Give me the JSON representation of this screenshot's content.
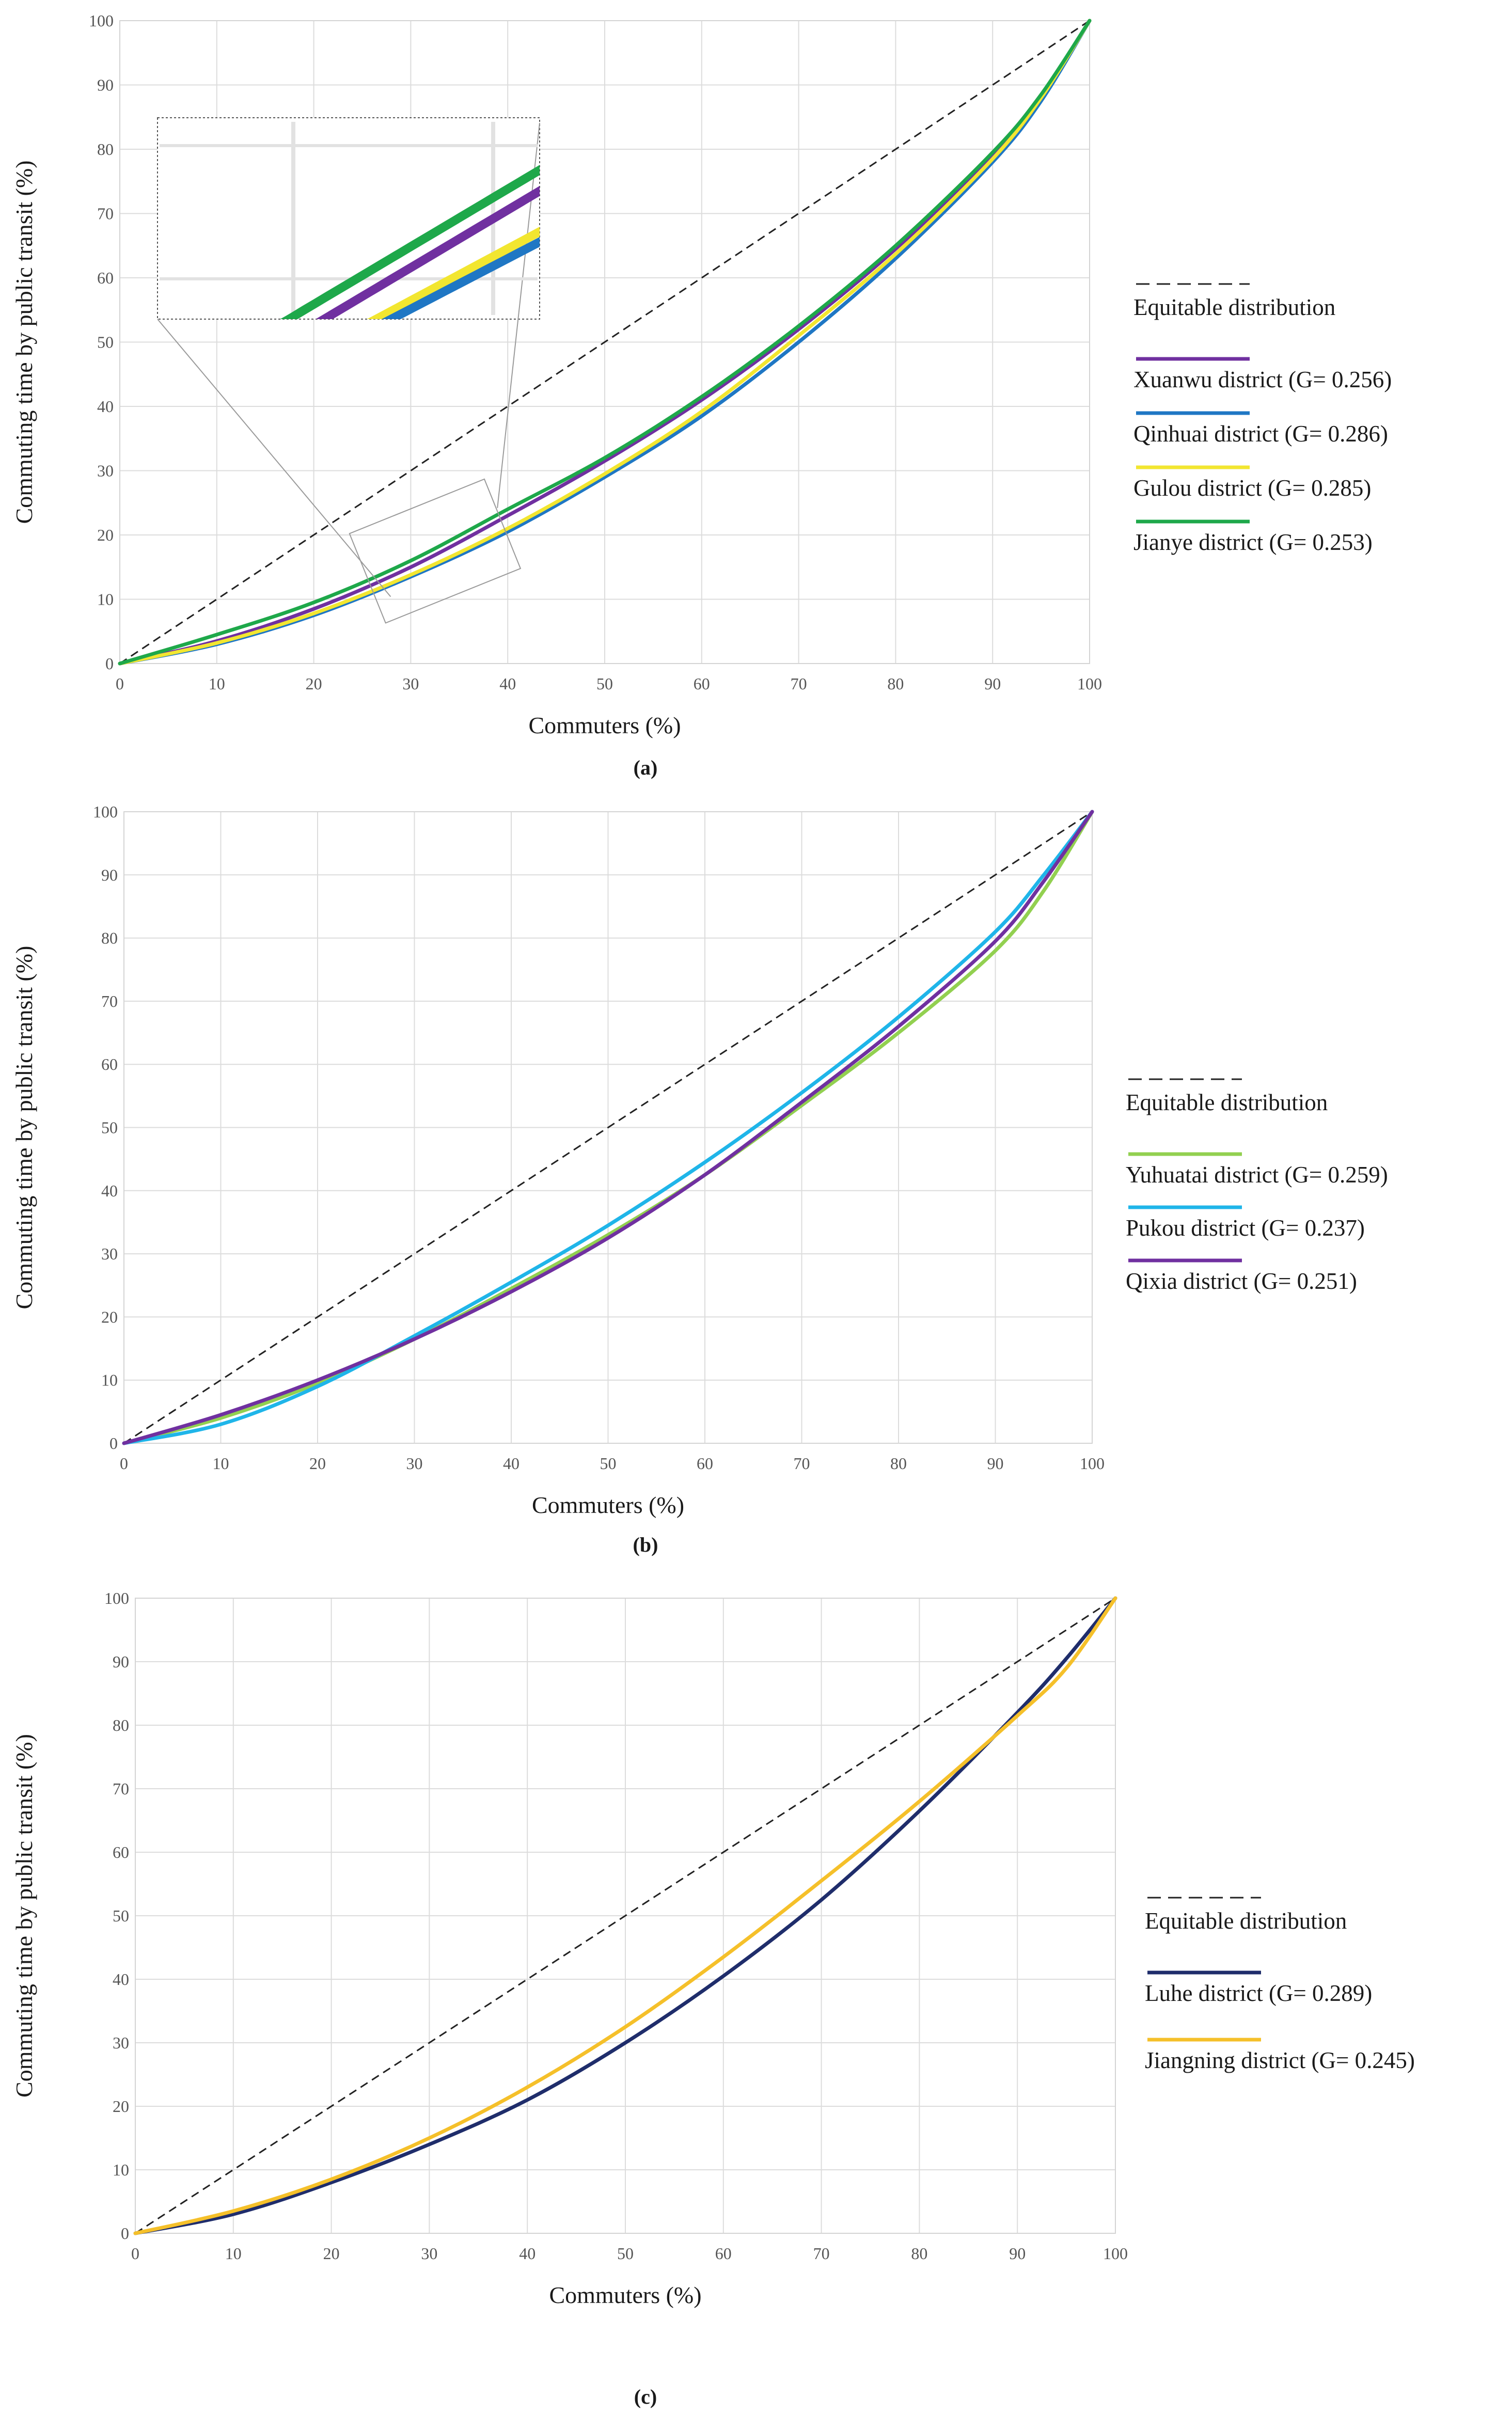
{
  "chart_data": [
    {
      "type": "line",
      "panel_label": "(a)",
      "xlabel": "Commuters (%)",
      "ylabel": "Commuting time by public transit (%)",
      "xlim": [
        0,
        100
      ],
      "ylim": [
        0,
        100
      ],
      "xticks": [
        0,
        10,
        20,
        30,
        40,
        50,
        60,
        70,
        80,
        90,
        100
      ],
      "yticks": [
        0,
        10,
        20,
        30,
        40,
        50,
        60,
        70,
        80,
        90,
        100
      ],
      "grid": true,
      "legend_position": "right",
      "inset_zoom": {
        "x_range": [
          25,
          40
        ],
        "y_range": [
          10,
          25
        ]
      },
      "reference": {
        "name": "Equitable distribution",
        "style": "dashed",
        "x": [
          0,
          100
        ],
        "y": [
          0,
          100
        ]
      },
      "series": [
        {
          "name": "Xuanwu district (G= 0.256)",
          "color": "#7030a0",
          "x": [
            0,
            10,
            20,
            30,
            40,
            50,
            60,
            70,
            80,
            90,
            95,
            100
          ],
          "y": [
            0,
            3.5,
            8.5,
            15,
            23,
            31.5,
            41,
            52,
            64.5,
            79,
            88,
            100
          ]
        },
        {
          "name": "Qinhuai district (G= 0.286)",
          "color": "#1f77c4",
          "x": [
            0,
            10,
            20,
            30,
            40,
            50,
            60,
            70,
            80,
            90,
            95,
            100
          ],
          "y": [
            0,
            3,
            7.5,
            13.5,
            20.5,
            29,
            38.5,
            50,
            63,
            78,
            87.5,
            100
          ]
        },
        {
          "name": "Gulou district (G= 0.285)",
          "color": "#f2e630",
          "x": [
            0,
            10,
            20,
            30,
            40,
            50,
            60,
            70,
            80,
            90,
            95,
            100
          ],
          "y": [
            0,
            3.2,
            7.8,
            13.8,
            21,
            29.5,
            39.2,
            51,
            63.7,
            78.5,
            88,
            100
          ]
        },
        {
          "name": "Jianye district (G= 0.253)",
          "color": "#1ea84a",
          "x": [
            0,
            10,
            20,
            30,
            40,
            50,
            60,
            70,
            80,
            90,
            95,
            100
          ],
          "y": [
            0,
            4.5,
            9.5,
            16,
            24,
            32,
            41.5,
            52.5,
            65,
            79.5,
            88.5,
            100
          ]
        }
      ]
    },
    {
      "type": "line",
      "panel_label": "(b)",
      "xlabel": "Commuters (%)",
      "ylabel": "Commuting time by public transit (%)",
      "xlim": [
        0,
        100
      ],
      "ylim": [
        0,
        100
      ],
      "xticks": [
        0,
        10,
        20,
        30,
        40,
        50,
        60,
        70,
        80,
        90,
        100
      ],
      "yticks": [
        0,
        10,
        20,
        30,
        40,
        50,
        60,
        70,
        80,
        90,
        100
      ],
      "grid": true,
      "legend_position": "right",
      "reference": {
        "name": "Equitable distribution",
        "style": "dashed",
        "x": [
          0,
          100
        ],
        "y": [
          0,
          100
        ]
      },
      "series": [
        {
          "name": "Yuhuatai district (G= 0.259)",
          "color": "#92d050",
          "x": [
            0,
            10,
            20,
            30,
            40,
            50,
            60,
            70,
            80,
            90,
            95,
            100
          ],
          "y": [
            0,
            4,
            9.5,
            16.5,
            24.5,
            33,
            42.5,
            53.5,
            65,
            78,
            87.5,
            100
          ]
        },
        {
          "name": "Pukou district (G= 0.237)",
          "color": "#1fb5e9",
          "x": [
            0,
            10,
            20,
            30,
            40,
            50,
            60,
            70,
            80,
            90,
            95,
            100
          ],
          "y": [
            0,
            3,
            9,
            17,
            25.5,
            34.5,
            44.5,
            55.5,
            67.5,
            81,
            90,
            100
          ]
        },
        {
          "name": "Qixia district (G= 0.251)",
          "color": "#7030a0",
          "x": [
            0,
            10,
            20,
            30,
            40,
            50,
            60,
            70,
            80,
            90,
            95,
            100
          ],
          "y": [
            0,
            4.5,
            10,
            16.5,
            24,
            32.5,
            42.5,
            54,
            66,
            79.5,
            89,
            100
          ]
        }
      ]
    },
    {
      "type": "line",
      "panel_label": "(c)",
      "xlabel": "Commuters (%)",
      "ylabel": "Commuting time by public transit (%)",
      "xlim": [
        0,
        100
      ],
      "ylim": [
        0,
        100
      ],
      "xticks": [
        0,
        10,
        20,
        30,
        40,
        50,
        60,
        70,
        80,
        90,
        100
      ],
      "yticks": [
        0,
        10,
        20,
        30,
        40,
        50,
        60,
        70,
        80,
        90,
        100
      ],
      "grid": true,
      "legend_position": "right",
      "reference": {
        "name": "Equitable distribution",
        "style": "dashed",
        "x": [
          0,
          100
        ],
        "y": [
          0,
          100
        ]
      },
      "series": [
        {
          "name": "Luhe district (G= 0.289)",
          "color": "#1f2d6b",
          "x": [
            0,
            10,
            20,
            30,
            40,
            50,
            60,
            70,
            80,
            90,
            95,
            100
          ],
          "y": [
            0,
            3,
            8,
            14,
            21,
            30,
            40.5,
            52.5,
            66.5,
            82,
            90.5,
            100
          ]
        },
        {
          "name": "Jiangning district (G= 0.245)",
          "color": "#f5c02a",
          "x": [
            0,
            10,
            20,
            30,
            40,
            50,
            60,
            70,
            80,
            90,
            95,
            100
          ],
          "y": [
            0,
            3.5,
            8.5,
            15,
            23,
            32.5,
            43.5,
            55.5,
            68,
            81.5,
            89,
            100
          ]
        }
      ]
    }
  ]
}
